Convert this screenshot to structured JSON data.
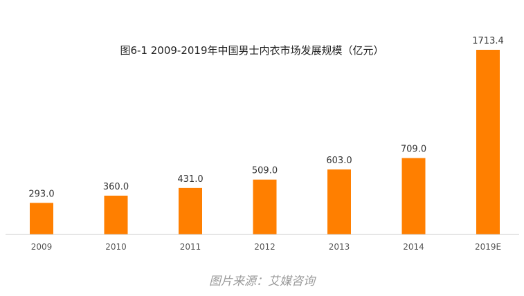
{
  "chart_data": {
    "type": "bar",
    "title": "图6-1 2009-2019年中国男士内衣市场发展规模（亿元）",
    "categories": [
      "2009",
      "2010",
      "2011",
      "2012",
      "2013",
      "2014",
      "2019E"
    ],
    "values": [
      293.0,
      360.0,
      431.0,
      509.0,
      603.0,
      709.0,
      1713.4
    ],
    "value_labels": [
      "293.0",
      "360.0",
      "431.0",
      "509.0",
      "603.0",
      "709.0",
      "1713.4"
    ],
    "xlabel": "",
    "ylabel": "",
    "ylim": [
      0,
      1713.4
    ],
    "grid": false,
    "bar_color": "#FF7F00"
  },
  "source_note": "图片来源：艾媒咨询"
}
